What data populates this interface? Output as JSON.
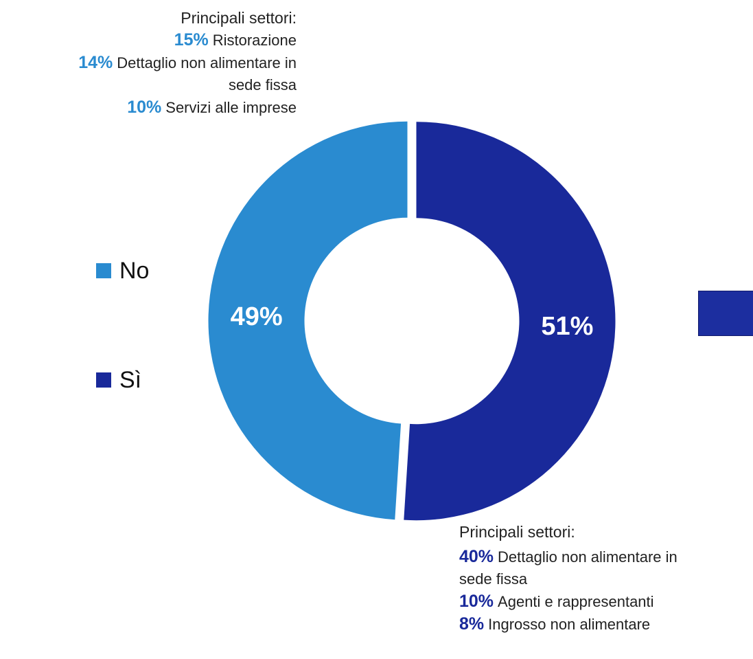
{
  "chart_data": {
    "type": "pie",
    "style": "donut",
    "slices": [
      {
        "label": "No",
        "value": 49,
        "display": "49%",
        "color": "#2a8bd0"
      },
      {
        "label": "Sì",
        "value": 51,
        "display": "51%",
        "color": "#19299a"
      }
    ],
    "legend": {
      "placement": "left",
      "entries": [
        {
          "label": "No",
          "color": "#2a8bd0"
        },
        {
          "label": "Sì",
          "color": "#19299a"
        }
      ]
    },
    "annotations": {
      "no": {
        "heading": "Principali settori:",
        "items": [
          {
            "pct": "15%",
            "text": "Ristorazione"
          },
          {
            "pct": "14%",
            "text": "Dettaglio non alimentare in",
            "text2": "sede fissa"
          },
          {
            "pct": "10%",
            "text": "Servizi alle imprese"
          }
        ]
      },
      "si": {
        "heading": "Principali settori:",
        "items": [
          {
            "pct": "40%",
            "text": "Dettaglio non alimentare in",
            "text2": "sede fissa"
          },
          {
            "pct": "10%",
            "text": "Agenti e rappresentanti"
          },
          {
            "pct": "8%",
            "text": "Ingrosso non alimentare"
          }
        ]
      }
    }
  },
  "colors": {
    "no": "#2a8bd0",
    "si": "#19299a",
    "deco": "#1c2e9f"
  }
}
